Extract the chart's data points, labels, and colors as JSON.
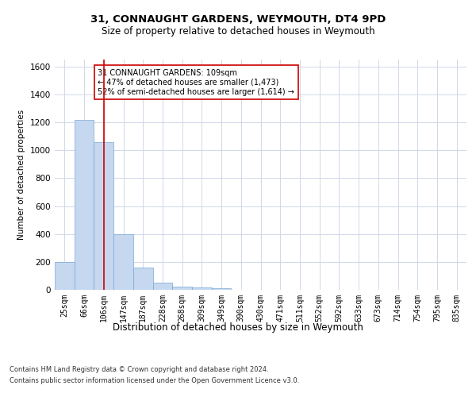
{
  "title1": "31, CONNAUGHT GARDENS, WEYMOUTH, DT4 9PD",
  "title2": "Size of property relative to detached houses in Weymouth",
  "xlabel": "Distribution of detached houses by size in Weymouth",
  "ylabel": "Number of detached properties",
  "categories": [
    "25sqm",
    "66sqm",
    "106sqm",
    "147sqm",
    "187sqm",
    "228sqm",
    "268sqm",
    "309sqm",
    "349sqm",
    "390sqm",
    "430sqm",
    "471sqm",
    "511sqm",
    "552sqm",
    "592sqm",
    "633sqm",
    "673sqm",
    "714sqm",
    "754sqm",
    "795sqm",
    "835sqm"
  ],
  "values": [
    200,
    1220,
    1060,
    400,
    160,
    50,
    20,
    15,
    10,
    0,
    0,
    0,
    0,
    0,
    0,
    0,
    0,
    0,
    0,
    0,
    0
  ],
  "bar_color": "#c5d8f0",
  "bar_edge_color": "#7ba8d4",
  "vline_x_idx": 2,
  "vline_color": "#cc0000",
  "ylim": [
    0,
    1650
  ],
  "yticks": [
    0,
    200,
    400,
    600,
    800,
    1000,
    1200,
    1400,
    1600
  ],
  "annotation_text": "31 CONNAUGHT GARDENS: 109sqm\n← 47% of detached houses are smaller (1,473)\n52% of semi-detached houses are larger (1,614) →",
  "annotation_box_color": "#ffffff",
  "annotation_box_edge": "#cc0000",
  "footer1": "Contains HM Land Registry data © Crown copyright and database right 2024.",
  "footer2": "Contains public sector information licensed under the Open Government Licence v3.0.",
  "bg_color": "#ffffff",
  "grid_color": "#d0d8e8",
  "title1_fontsize": 9.5,
  "title2_fontsize": 8.5,
  "xlabel_fontsize": 8.5,
  "ylabel_fontsize": 7.5,
  "xtick_fontsize": 7,
  "ytick_fontsize": 7.5,
  "annotation_fontsize": 7,
  "footer_fontsize": 6
}
